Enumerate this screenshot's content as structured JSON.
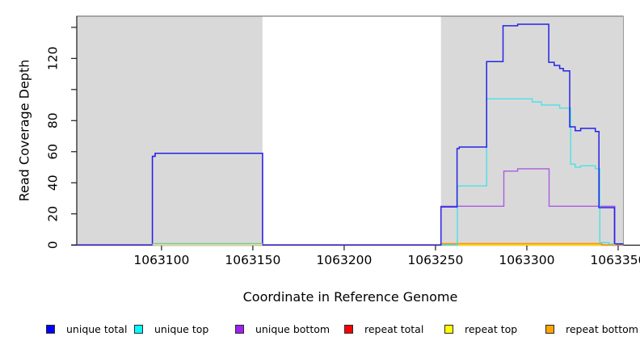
{
  "figure_title": "",
  "y_axis": {
    "label": "Read Coverage Depth",
    "ticks": [
      {
        "value": 0,
        "label": "0"
      },
      {
        "value": 20,
        "label": "20"
      },
      {
        "value": 40,
        "label": "40"
      },
      {
        "value": 60,
        "label": "60"
      },
      {
        "value": 80,
        "label": "80"
      },
      {
        "value": 100,
        "label": ""
      },
      {
        "value": 120,
        "label": "120"
      },
      {
        "value": 140,
        "label": ""
      }
    ]
  },
  "x_axis": {
    "label": "Coordinate in Reference Genome",
    "ticks": [
      {
        "value": 1063100,
        "label": "1063100"
      },
      {
        "value": 1063150,
        "label": "1063150"
      },
      {
        "value": 1063200,
        "label": "1063200"
      },
      {
        "value": 1063250,
        "label": "1063250"
      },
      {
        "value": 1063300,
        "label": "1063300"
      },
      {
        "value": 1063350,
        "label": "1063350"
      }
    ]
  },
  "legend": {
    "items": [
      {
        "label": "unique total",
        "color": "#0000ff"
      },
      {
        "label": "unique top",
        "color": "#00ffff"
      },
      {
        "label": "unique bottom",
        "color": "#a020f0"
      },
      {
        "label": "repeat total",
        "color": "#ff0000"
      },
      {
        "label": "repeat top",
        "color": "#ffff00"
      },
      {
        "label": "repeat bottom",
        "color": "#ffa500"
      }
    ]
  },
  "chart_data": {
    "type": "line",
    "title": "",
    "xlabel": "Coordinate in Reference Genome",
    "ylabel": "Read Coverage Depth",
    "xlim": [
      1063053.6,
      1063352.9
    ],
    "ylim": [
      0,
      147.2
    ],
    "grid": false,
    "plot_background": "#ffffff",
    "shaded_regions": [
      {
        "name": "repeat-region-left",
        "x1": 1063053.6,
        "x2": 1063155.3,
        "color": "#d9d9d9"
      },
      {
        "name": "repeat-region-right",
        "x1": 1063253.0,
        "x2": 1063352.9,
        "color": "#d9d9d9"
      }
    ],
    "series": [
      {
        "name": "repeat total",
        "color": "#ff0000",
        "width": 1.3,
        "points": [
          [
            1063053.6,
            0
          ],
          [
            1063352.9,
            0
          ]
        ]
      },
      {
        "name": "repeat top",
        "color": "#ffff00",
        "width": 1.3,
        "points": [
          [
            1063053.6,
            0
          ],
          [
            1063352.9,
            0
          ]
        ]
      },
      {
        "name": "repeat bottom",
        "color": "#ff950a",
        "width": 1.8,
        "points": [
          [
            1063053.6,
            0
          ],
          [
            1063253,
            0
          ],
          [
            1063253,
            0.8
          ],
          [
            1063341,
            0.8
          ],
          [
            1063341,
            0
          ],
          [
            1063352.9,
            0
          ]
        ]
      },
      {
        "name": "unique bottom",
        "color": "#ab5ce0",
        "width": 1.4,
        "points": [
          [
            1063053.6,
            0
          ],
          [
            1063095,
            0
          ],
          [
            1063095,
            57
          ],
          [
            1063096.5,
            57
          ],
          [
            1063096.5,
            59
          ],
          [
            1063155.3,
            59
          ],
          [
            1063155.3,
            0
          ],
          [
            1063253,
            0
          ],
          [
            1063253,
            24.9
          ],
          [
            1063287.4,
            24.9
          ],
          [
            1063287.4,
            47.5
          ],
          [
            1063295,
            47.5
          ],
          [
            1063295,
            49
          ],
          [
            1063312.2,
            49
          ],
          [
            1063312.2,
            24.9
          ],
          [
            1063348.2,
            24.9
          ],
          [
            1063348.2,
            0.3
          ],
          [
            1063352.9,
            0.3
          ]
        ]
      },
      {
        "name": "unique top",
        "color": "#3fe2e8",
        "width": 1.3,
        "points": [
          [
            1063053.6,
            0
          ],
          [
            1063262,
            0
          ],
          [
            1063262,
            38
          ],
          [
            1063278,
            38
          ],
          [
            1063278,
            94
          ],
          [
            1063303,
            94
          ],
          [
            1063303,
            92
          ],
          [
            1063308,
            92
          ],
          [
            1063308,
            90
          ],
          [
            1063318,
            90
          ],
          [
            1063318,
            88
          ],
          [
            1063324,
            88
          ],
          [
            1063324,
            52
          ],
          [
            1063326.5,
            52
          ],
          [
            1063326.5,
            50
          ],
          [
            1063329.5,
            50
          ],
          [
            1063329.5,
            51
          ],
          [
            1063337.5,
            51
          ],
          [
            1063337.5,
            49
          ],
          [
            1063340,
            49
          ],
          [
            1063340,
            1.5
          ],
          [
            1063345,
            1.5
          ],
          [
            1063345,
            0.5
          ],
          [
            1063352.9,
            0.5
          ]
        ]
      },
      {
        "name": "unique total",
        "color": "#2424e8",
        "width": 1.5,
        "points": [
          [
            1063053.6,
            0
          ],
          [
            1063095,
            0
          ],
          [
            1063095,
            57
          ],
          [
            1063096.5,
            57
          ],
          [
            1063096.5,
            59
          ],
          [
            1063155.3,
            59
          ],
          [
            1063155.3,
            0
          ],
          [
            1063253,
            0
          ],
          [
            1063253,
            24.5
          ],
          [
            1063261.8,
            24.5
          ],
          [
            1063261.8,
            62
          ],
          [
            1063263,
            62
          ],
          [
            1063263,
            63
          ],
          [
            1063278,
            63
          ],
          [
            1063278,
            118
          ],
          [
            1063287,
            118
          ],
          [
            1063287,
            141
          ],
          [
            1063295,
            141
          ],
          [
            1063295,
            142
          ],
          [
            1063312,
            142
          ],
          [
            1063312,
            117.5
          ],
          [
            1063315,
            117.5
          ],
          [
            1063315,
            115.5
          ],
          [
            1063318,
            115.5
          ],
          [
            1063318,
            113.5
          ],
          [
            1063320,
            113.5
          ],
          [
            1063320,
            112
          ],
          [
            1063323.5,
            112
          ],
          [
            1063323.5,
            76
          ],
          [
            1063326.5,
            76
          ],
          [
            1063326.5,
            73.5
          ],
          [
            1063329.5,
            73.5
          ],
          [
            1063329.5,
            75
          ],
          [
            1063337.5,
            75
          ],
          [
            1063337.5,
            73
          ],
          [
            1063339.5,
            73
          ],
          [
            1063339.5,
            24
          ],
          [
            1063348,
            24
          ],
          [
            1063348,
            0.7
          ],
          [
            1063352.9,
            0.7
          ]
        ]
      }
    ],
    "zero_line_overlays": [
      {
        "name": "left-zero-green",
        "x1": 1063095,
        "x2": 1063155.3,
        "value": 0.9,
        "color": "#7cc87c",
        "width": 1.2
      },
      {
        "name": "left-zero-yellow",
        "x1": 1063095,
        "x2": 1063155.3,
        "value": 0.15,
        "color": "#ece5c2",
        "width": 1.2
      },
      {
        "name": "right-zero-green",
        "x1": 1063345,
        "x2": 1063348.5,
        "value": 0.4,
        "color": "#8cc88c",
        "width": 1.2
      }
    ]
  }
}
